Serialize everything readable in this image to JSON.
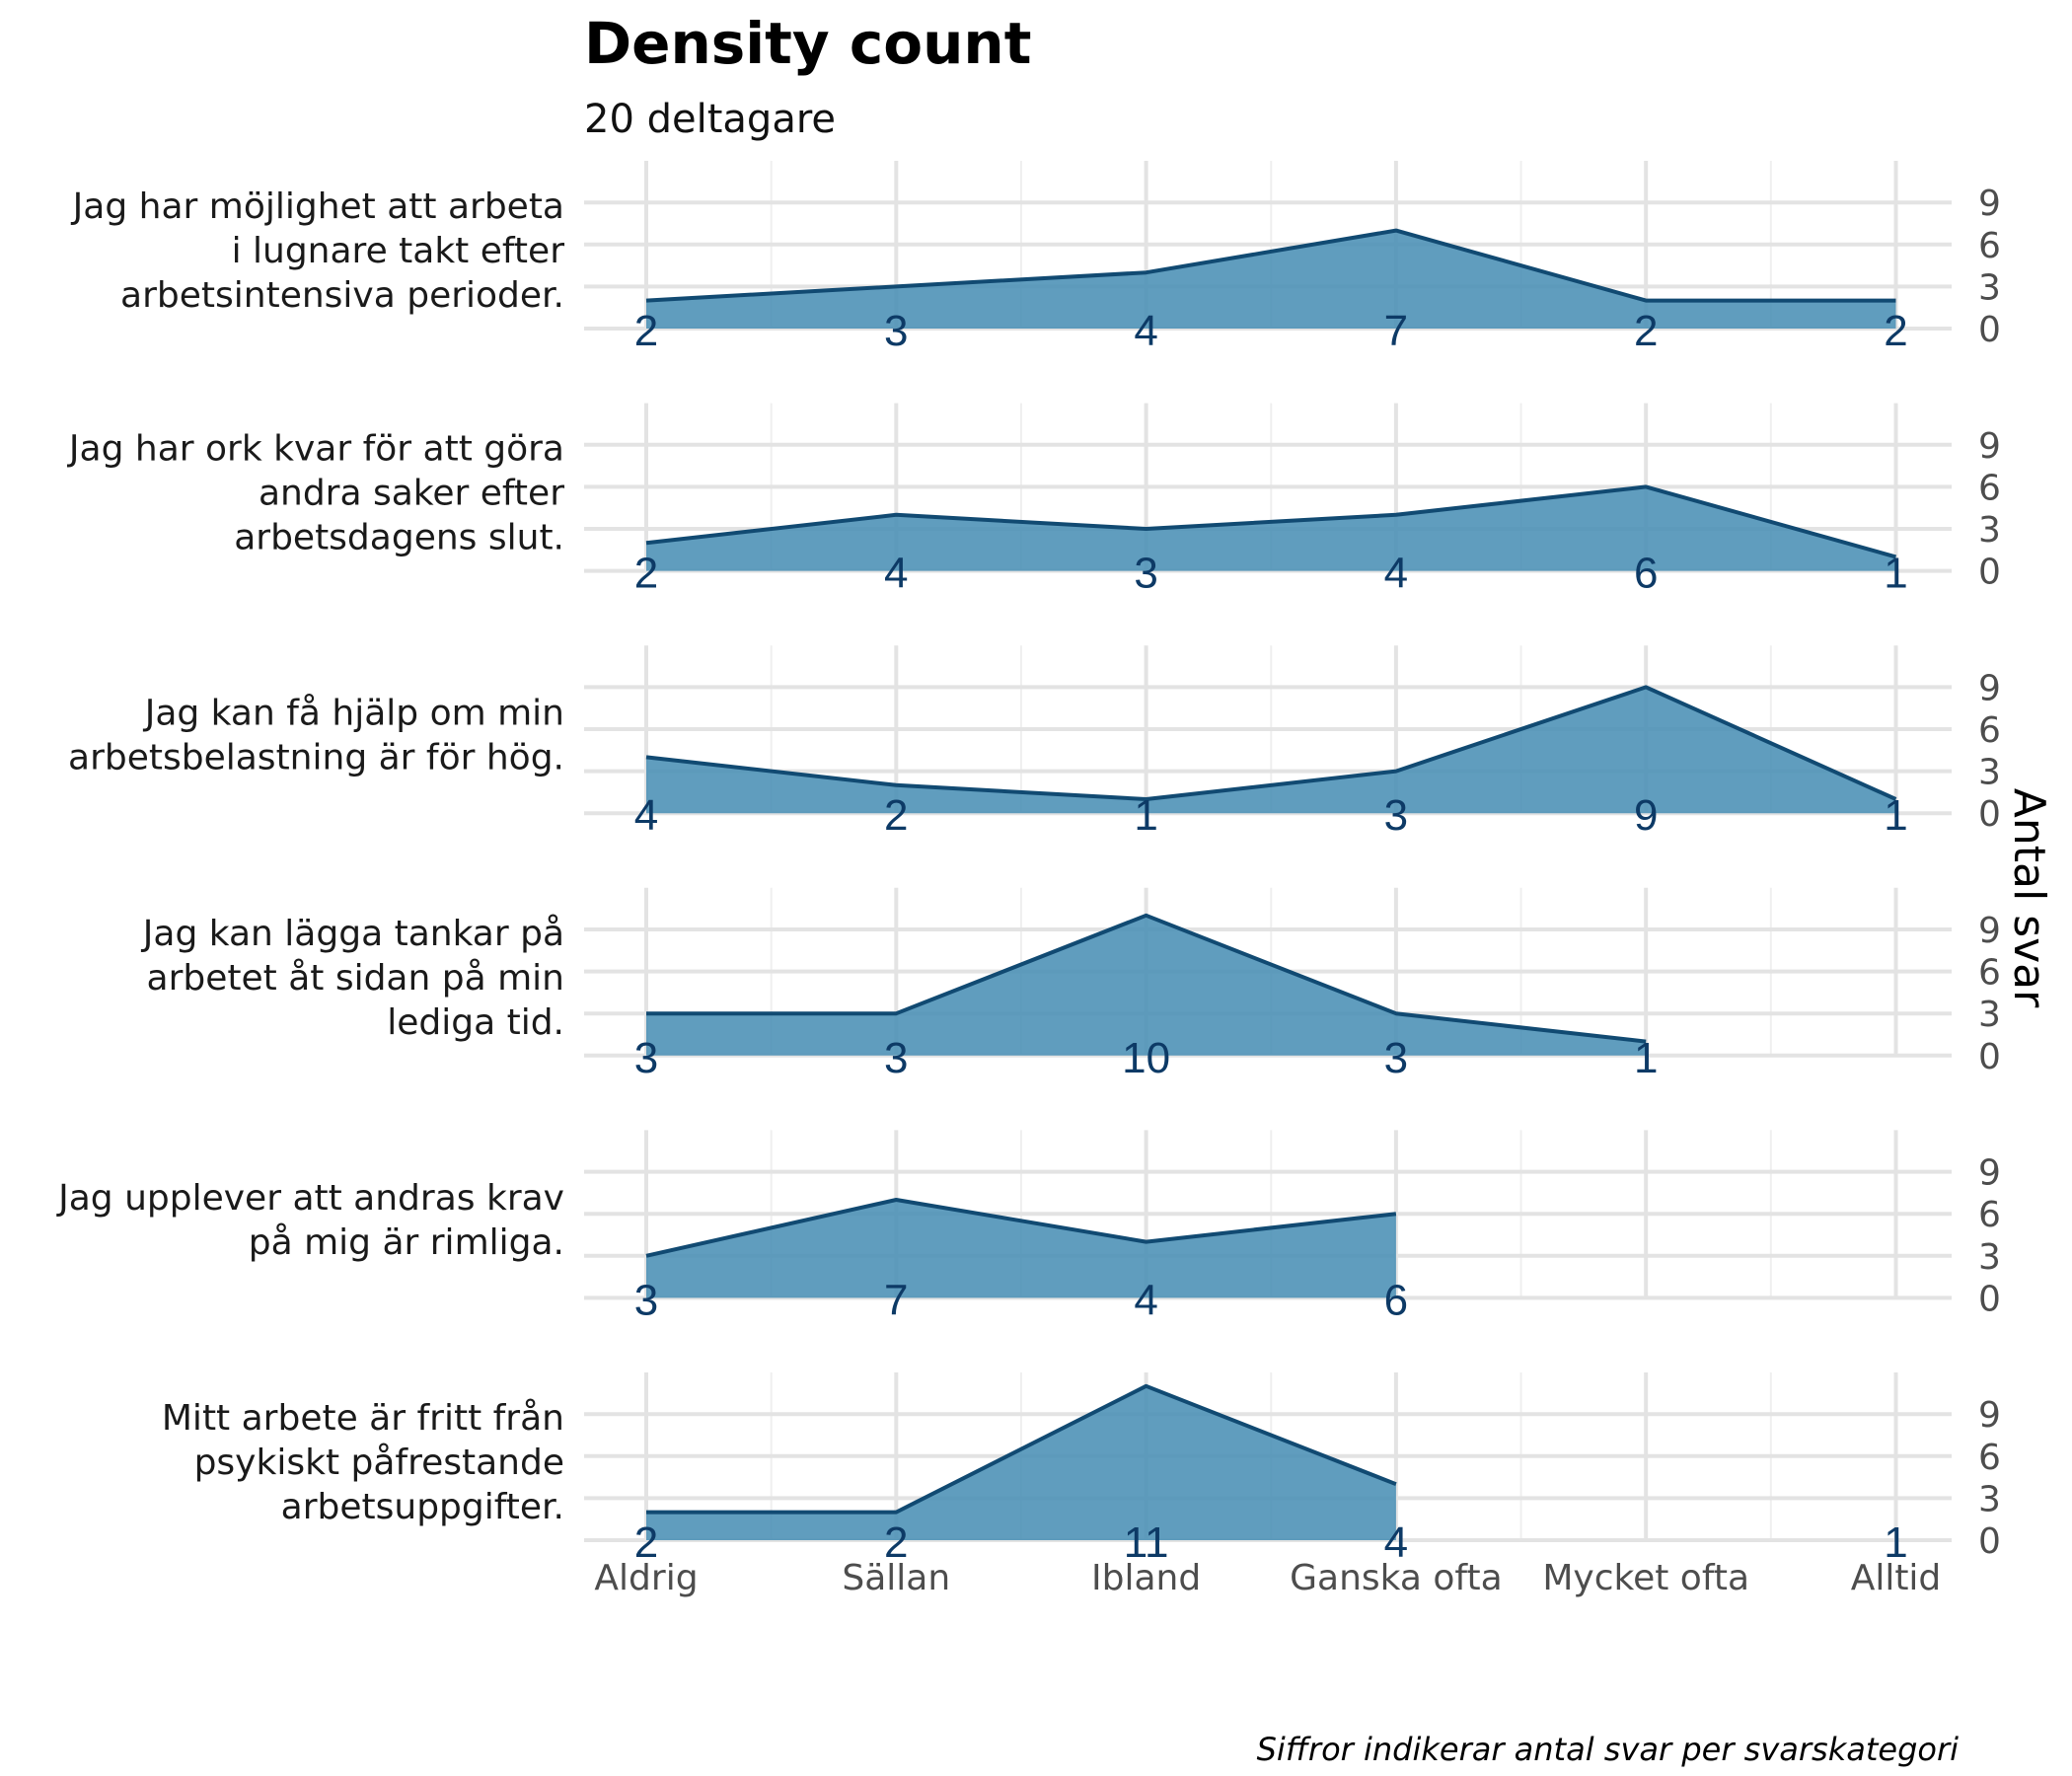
{
  "chart_data": {
    "type": "area",
    "title": "Density count",
    "subtitle": "20 deltagare",
    "ylabel": "Antal svar",
    "caption": "Siffror indikerar antal svar per svarskategori",
    "categories": [
      "Aldrig",
      "Sällan",
      "Ibland",
      "Ganska ofta",
      "Mycket ofta",
      "Alltid"
    ],
    "yticks": [
      0,
      3,
      6,
      9
    ],
    "ylim": [
      0,
      11
    ],
    "colors": {
      "fill": "#4a90b5",
      "line": "#114a72",
      "labels": "#0d3a66"
    },
    "grid": true,
    "series": [
      {
        "name": "Jag har möjlighet att arbeta i lugnare takt efter arbetsintensiva perioder.",
        "label_lines": [
          "Jag har möjlighet att arbeta",
          "i lugnare takt efter",
          "arbetsintensiva perioder."
        ],
        "values": [
          2,
          3,
          4,
          7,
          2,
          2
        ]
      },
      {
        "name": "Jag har ork kvar för att göra andra saker efter arbetsdagens slut.",
        "label_lines": [
          "Jag har ork kvar för att göra",
          "andra saker efter",
          "arbetsdagens slut."
        ],
        "values": [
          2,
          4,
          3,
          4,
          6,
          1
        ]
      },
      {
        "name": "Jag kan få hjälp om min arbetsbelastning är för hög.",
        "label_lines": [
          "Jag kan få hjälp om min",
          "arbetsbelastning är för hög."
        ],
        "values": [
          4,
          2,
          1,
          3,
          9,
          1
        ]
      },
      {
        "name": "Jag kan lägga tankar på arbetet åt sidan på min lediga tid.",
        "label_lines": [
          "Jag kan lägga tankar på",
          "arbetet åt sidan på min",
          "lediga tid."
        ],
        "values": [
          3,
          3,
          10,
          3,
          1,
          null
        ]
      },
      {
        "name": "Jag upplever att andras krav på mig är rimliga.",
        "label_lines": [
          "Jag upplever att andras krav",
          "på mig är rimliga."
        ],
        "values": [
          3,
          7,
          4,
          6,
          null,
          null
        ]
      },
      {
        "name": "Mitt arbete är fritt från psykiskt påfrestande arbetsuppgifter.",
        "label_lines": [
          "Mitt arbete är fritt från",
          "psykiskt påfrestande",
          "arbetsuppgifter."
        ],
        "values": [
          2,
          2,
          11,
          4,
          null,
          1
        ]
      }
    ]
  }
}
